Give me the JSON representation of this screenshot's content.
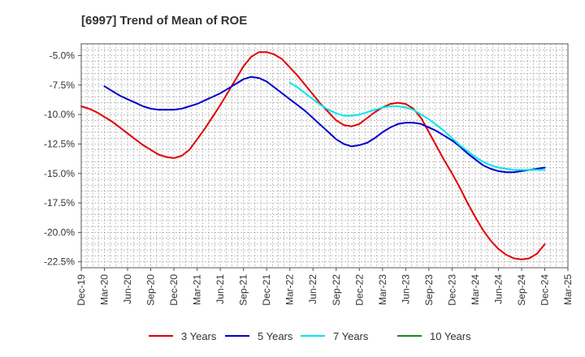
{
  "chart_data": {
    "type": "line",
    "title": "[6997]  Trend of Mean of ROE",
    "xlabel": "",
    "ylabel": "",
    "x_ticks": [
      "Dec-19",
      "Mar-20",
      "Jun-20",
      "Sep-20",
      "Dec-20",
      "Mar-21",
      "Jun-21",
      "Sep-21",
      "Dec-21",
      "Mar-22",
      "Jun-22",
      "Sep-22",
      "Dec-22",
      "Mar-23",
      "Jun-23",
      "Sep-23",
      "Dec-23",
      "Mar-24",
      "Jun-24",
      "Sep-24",
      "Dec-24",
      "Mar-25"
    ],
    "y_ticks": [
      "-5.0%",
      "-7.5%",
      "-10.0%",
      "-12.5%",
      "-15.0%",
      "-17.5%",
      "-20.0%",
      "-22.5%"
    ],
    "y_tick_values": [
      -5.0,
      -7.5,
      -10.0,
      -12.5,
      -15.0,
      -17.5,
      -20.0,
      -22.5
    ],
    "ylim": [
      -23.0,
      -4.0
    ],
    "grid": true,
    "legend_position": "bottom",
    "series": [
      {
        "name": "3 Years",
        "color": "#e00000",
        "points": [
          [
            "Dec-19",
            -9.3
          ],
          [
            "Jan-20",
            -9.5
          ],
          [
            "Feb-20",
            -9.8
          ],
          [
            "Mar-20",
            -10.2
          ],
          [
            "Apr-20",
            -10.6
          ],
          [
            "May-20",
            -11.1
          ],
          [
            "Jun-20",
            -11.6
          ],
          [
            "Jul-20",
            -12.1
          ],
          [
            "Aug-20",
            -12.6
          ],
          [
            "Sep-20",
            -13.0
          ],
          [
            "Oct-20",
            -13.4
          ],
          [
            "Nov-20",
            -13.6
          ],
          [
            "Dec-20",
            -13.7
          ],
          [
            "Jan-21",
            -13.5
          ],
          [
            "Feb-21",
            -13.0
          ],
          [
            "Mar-21",
            -12.1
          ],
          [
            "Apr-21",
            -11.2
          ],
          [
            "May-21",
            -10.2
          ],
          [
            "Jun-21",
            -9.2
          ],
          [
            "Jul-21",
            -8.1
          ],
          [
            "Aug-21",
            -7.0
          ],
          [
            "Sep-21",
            -5.9
          ],
          [
            "Oct-21",
            -5.1
          ],
          [
            "Nov-21",
            -4.7
          ],
          [
            "Dec-21",
            -4.7
          ],
          [
            "Jan-22",
            -4.9
          ],
          [
            "Feb-22",
            -5.3
          ],
          [
            "Mar-22",
            -6.0
          ],
          [
            "Apr-22",
            -6.7
          ],
          [
            "May-22",
            -7.5
          ],
          [
            "Jun-22",
            -8.3
          ],
          [
            "Jul-22",
            -9.1
          ],
          [
            "Aug-22",
            -9.8
          ],
          [
            "Sep-22",
            -10.5
          ],
          [
            "Oct-22",
            -10.9
          ],
          [
            "Nov-22",
            -11.0
          ],
          [
            "Dec-22",
            -10.8
          ],
          [
            "Jan-23",
            -10.3
          ],
          [
            "Feb-23",
            -9.8
          ],
          [
            "Mar-23",
            -9.4
          ],
          [
            "Apr-23",
            -9.1
          ],
          [
            "May-23",
            -9.0
          ],
          [
            "Jun-23",
            -9.1
          ],
          [
            "Jul-23",
            -9.5
          ],
          [
            "Aug-23",
            -10.3
          ],
          [
            "Sep-23",
            -11.5
          ],
          [
            "Oct-23",
            -12.7
          ],
          [
            "Nov-23",
            -13.9
          ],
          [
            "Dec-23",
            -15.0
          ],
          [
            "Jan-24",
            -16.2
          ],
          [
            "Feb-24",
            -17.5
          ],
          [
            "Mar-24",
            -18.7
          ],
          [
            "Apr-24",
            -19.8
          ],
          [
            "May-24",
            -20.7
          ],
          [
            "Jun-24",
            -21.4
          ],
          [
            "Jul-24",
            -21.9
          ],
          [
            "Aug-24",
            -22.2
          ],
          [
            "Sep-24",
            -22.3
          ],
          [
            "Oct-24",
            -22.2
          ],
          [
            "Nov-24",
            -21.8
          ],
          [
            "Dec-24",
            -21.0
          ]
        ]
      },
      {
        "name": "5 Years",
        "color": "#0000cc",
        "points": [
          [
            "Mar-20",
            -7.6
          ],
          [
            "Apr-20",
            -8.0
          ],
          [
            "May-20",
            -8.4
          ],
          [
            "Jun-20",
            -8.7
          ],
          [
            "Jul-20",
            -9.0
          ],
          [
            "Aug-20",
            -9.3
          ],
          [
            "Sep-20",
            -9.5
          ],
          [
            "Oct-20",
            -9.6
          ],
          [
            "Nov-20",
            -9.6
          ],
          [
            "Dec-20",
            -9.6
          ],
          [
            "Jan-21",
            -9.5
          ],
          [
            "Feb-21",
            -9.3
          ],
          [
            "Mar-21",
            -9.1
          ],
          [
            "Apr-21",
            -8.8
          ],
          [
            "May-21",
            -8.5
          ],
          [
            "Jun-21",
            -8.2
          ],
          [
            "Jul-21",
            -7.8
          ],
          [
            "Aug-21",
            -7.4
          ],
          [
            "Sep-21",
            -7.0
          ],
          [
            "Oct-21",
            -6.8
          ],
          [
            "Nov-21",
            -6.9
          ],
          [
            "Dec-21",
            -7.2
          ],
          [
            "Jan-22",
            -7.7
          ],
          [
            "Feb-22",
            -8.2
          ],
          [
            "Mar-22",
            -8.7
          ],
          [
            "Apr-22",
            -9.2
          ],
          [
            "May-22",
            -9.7
          ],
          [
            "Jun-22",
            -10.3
          ],
          [
            "Jul-22",
            -10.9
          ],
          [
            "Aug-22",
            -11.5
          ],
          [
            "Sep-22",
            -12.1
          ],
          [
            "Oct-22",
            -12.5
          ],
          [
            "Nov-22",
            -12.7
          ],
          [
            "Dec-22",
            -12.6
          ],
          [
            "Jan-23",
            -12.4
          ],
          [
            "Feb-23",
            -12.0
          ],
          [
            "Mar-23",
            -11.5
          ],
          [
            "Apr-23",
            -11.1
          ],
          [
            "May-23",
            -10.8
          ],
          [
            "Jun-23",
            -10.7
          ],
          [
            "Jul-23",
            -10.7
          ],
          [
            "Aug-23",
            -10.8
          ],
          [
            "Sep-23",
            -11.1
          ],
          [
            "Oct-23",
            -11.4
          ],
          [
            "Nov-23",
            -11.8
          ],
          [
            "Dec-23",
            -12.2
          ],
          [
            "Jan-24",
            -12.7
          ],
          [
            "Feb-24",
            -13.3
          ],
          [
            "Mar-24",
            -13.8
          ],
          [
            "Apr-24",
            -14.3
          ],
          [
            "May-24",
            -14.6
          ],
          [
            "Jun-24",
            -14.8
          ],
          [
            "Jul-24",
            -14.9
          ],
          [
            "Aug-24",
            -14.9
          ],
          [
            "Sep-24",
            -14.8
          ],
          [
            "Oct-24",
            -14.7
          ],
          [
            "Nov-24",
            -14.6
          ],
          [
            "Dec-24",
            -14.5
          ]
        ]
      },
      {
        "name": "7 Years",
        "color": "#00e5ee",
        "points": [
          [
            "Mar-22",
            -7.3
          ],
          [
            "Apr-22",
            -7.7
          ],
          [
            "May-22",
            -8.2
          ],
          [
            "Jun-22",
            -8.7
          ],
          [
            "Jul-22",
            -9.2
          ],
          [
            "Aug-22",
            -9.6
          ],
          [
            "Sep-22",
            -9.9
          ],
          [
            "Oct-22",
            -10.1
          ],
          [
            "Nov-22",
            -10.1
          ],
          [
            "Dec-22",
            -10.0
          ],
          [
            "Jan-23",
            -9.8
          ],
          [
            "Feb-23",
            -9.6
          ],
          [
            "Mar-23",
            -9.4
          ],
          [
            "Apr-23",
            -9.3
          ],
          [
            "May-23",
            -9.3
          ],
          [
            "Jun-23",
            -9.4
          ],
          [
            "Jul-23",
            -9.6
          ],
          [
            "Aug-23",
            -10.0
          ],
          [
            "Sep-23",
            -10.4
          ],
          [
            "Oct-23",
            -10.9
          ],
          [
            "Nov-23",
            -11.4
          ],
          [
            "Dec-23",
            -12.0
          ],
          [
            "Jan-24",
            -12.6
          ],
          [
            "Feb-24",
            -13.1
          ],
          [
            "Mar-24",
            -13.6
          ],
          [
            "Apr-24",
            -14.0
          ],
          [
            "May-24",
            -14.3
          ],
          [
            "Jun-24",
            -14.5
          ],
          [
            "Jul-24",
            -14.6
          ],
          [
            "Aug-24",
            -14.7
          ],
          [
            "Sep-24",
            -14.7
          ],
          [
            "Oct-24",
            -14.7
          ],
          [
            "Nov-24",
            -14.7
          ],
          [
            "Dec-24",
            -14.7
          ]
        ]
      },
      {
        "name": "10 Years",
        "color": "#1a8a1a",
        "points": []
      }
    ]
  }
}
